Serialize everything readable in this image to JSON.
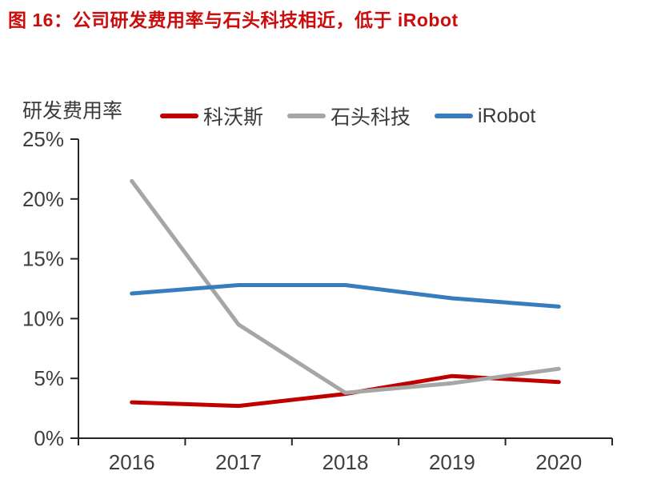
{
  "figure": {
    "title": "图 16：公司研发费用率与石头科技相近，低于 iRobot",
    "title_color": "#CC0D0D"
  },
  "chart": {
    "y_axis_title": "研发费用率"
  },
  "chart_data": {
    "type": "line",
    "title": "公司研发费用率与石头科技相近，低于 iRobot",
    "categories": [
      "2016",
      "2017",
      "2018",
      "2019",
      "2020"
    ],
    "series": [
      {
        "name": "科沃斯",
        "key": "ecovacs",
        "color": "#C00000",
        "values": [
          3.0,
          2.7,
          3.7,
          5.2,
          4.7
        ]
      },
      {
        "name": "石头科技",
        "key": "roborock",
        "color": "#A6A6A6",
        "values": [
          21.5,
          9.5,
          3.8,
          4.6,
          5.8
        ]
      },
      {
        "name": "iRobot",
        "key": "irobot",
        "color": "#377CBE",
        "values": [
          12.1,
          12.8,
          12.8,
          11.7,
          11.0
        ]
      }
    ],
    "xlabel": "",
    "ylabel": "研发费用率",
    "ylim": [
      0,
      25
    ],
    "y_ticks": [
      0,
      5,
      10,
      15,
      20,
      25
    ],
    "y_tick_labels": [
      "0%",
      "5%",
      "10%",
      "15%",
      "20%",
      "25%"
    ],
    "grid": false,
    "legend_position": "top",
    "axis_color": "#262626",
    "tick_label_color": "#3f3f3f"
  }
}
